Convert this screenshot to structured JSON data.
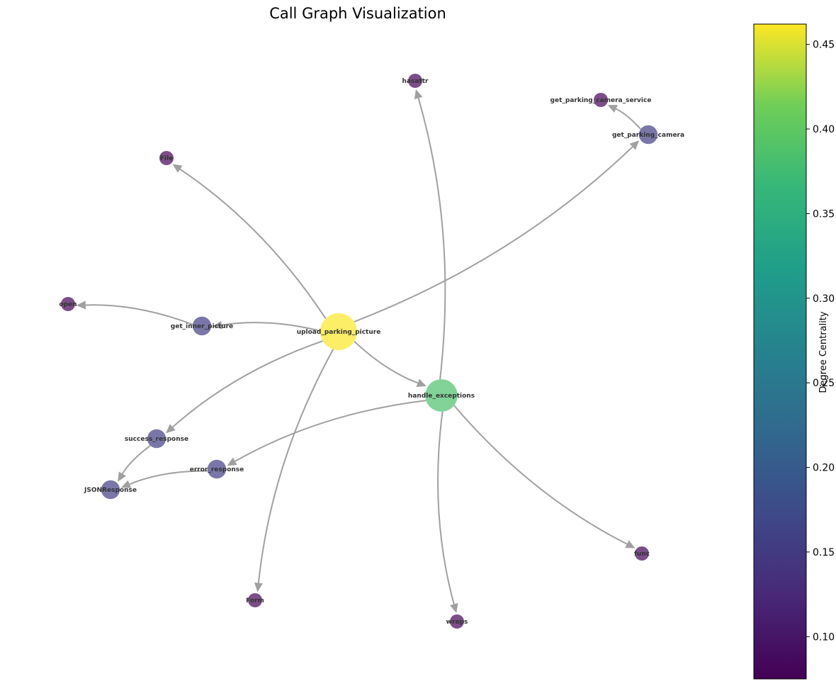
{
  "title": "Call Graph Visualization",
  "colorbar": {
    "label": "Degree Centrality",
    "range": [
      0.075,
      0.462
    ],
    "ticks": [
      "0.10",
      "0.15",
      "0.20",
      "0.25",
      "0.30",
      "0.35",
      "0.40",
      "0.45"
    ]
  },
  "nodes": [
    {
      "id": "upload_parking_picture",
      "label": "upload_parking_picture",
      "centrality": 0.4615
    },
    {
      "id": "handle_exceptions",
      "label": "handle_exceptions",
      "centrality": 0.3846
    },
    {
      "id": "get_parking_camera",
      "label": "get_parking_camera",
      "centrality": 0.1538
    },
    {
      "id": "get_inner_picture",
      "label": "get_inner_picture",
      "centrality": 0.1538
    },
    {
      "id": "success_response",
      "label": "success_response",
      "centrality": 0.1538
    },
    {
      "id": "error_response",
      "label": "error_response",
      "centrality": 0.1538
    },
    {
      "id": "JSONResponse",
      "label": "JSONResponse",
      "centrality": 0.1538
    },
    {
      "id": "hasattr",
      "label": "hasattr",
      "centrality": 0.0769
    },
    {
      "id": "get_parking_camera_service",
      "label": "get_parking_camera_service",
      "centrality": 0.0769
    },
    {
      "id": "File",
      "label": "File",
      "centrality": 0.0769
    },
    {
      "id": "open",
      "label": "open",
      "centrality": 0.0769
    },
    {
      "id": "Form",
      "label": "Form",
      "centrality": 0.0769
    },
    {
      "id": "wraps",
      "label": "wraps",
      "centrality": 0.0769
    },
    {
      "id": "func",
      "label": "func",
      "centrality": 0.0769
    }
  ],
  "edges": [
    {
      "from": "upload_parking_picture",
      "to": "File"
    },
    {
      "from": "upload_parking_picture",
      "to": "get_parking_camera"
    },
    {
      "from": "upload_parking_picture",
      "to": "get_inner_picture"
    },
    {
      "from": "upload_parking_picture",
      "to": "success_response"
    },
    {
      "from": "upload_parking_picture",
      "to": "Form"
    },
    {
      "from": "upload_parking_picture",
      "to": "handle_exceptions"
    },
    {
      "from": "get_parking_camera",
      "to": "get_parking_camera_service"
    },
    {
      "from": "get_inner_picture",
      "to": "open"
    },
    {
      "from": "handle_exceptions",
      "to": "hasattr"
    },
    {
      "from": "handle_exceptions",
      "to": "error_response"
    },
    {
      "from": "handle_exceptions",
      "to": "func"
    },
    {
      "from": "handle_exceptions",
      "to": "wraps"
    },
    {
      "from": "success_response",
      "to": "JSONResponse"
    },
    {
      "from": "error_response",
      "to": "JSONResponse"
    }
  ]
}
